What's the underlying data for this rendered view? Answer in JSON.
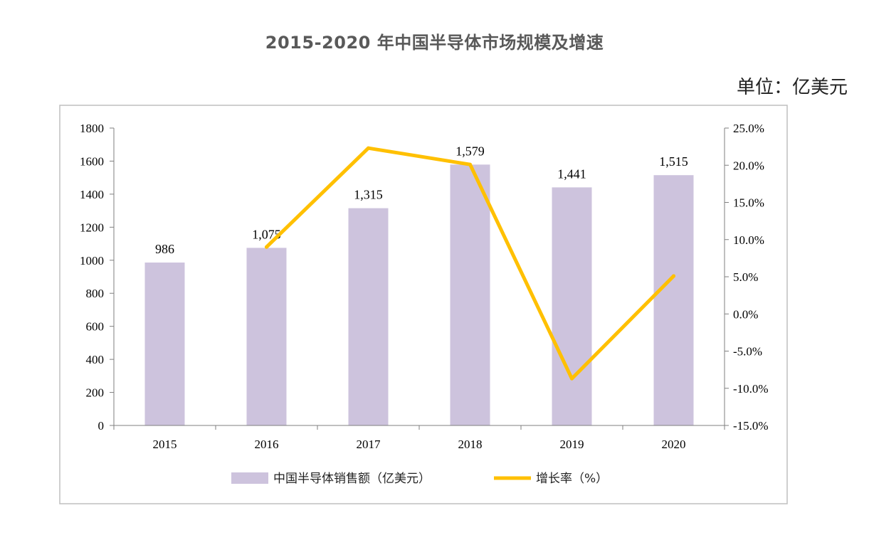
{
  "chart_data": {
    "type": "bar",
    "title": "2015-2020 年中国半导体市场规模及增速",
    "unit_label": "单位：亿美元",
    "categories": [
      "2015",
      "2016",
      "2017",
      "2018",
      "2019",
      "2020"
    ],
    "series": [
      {
        "name": "中国半导体销售额（亿美元）",
        "type": "bar",
        "axis": "left",
        "values": [
          986,
          1075,
          1315,
          1579,
          1441,
          1515
        ],
        "value_labels": [
          "986",
          "1,075",
          "1,315",
          "1,579",
          "1,441",
          "1,515"
        ],
        "color": "#cdc3dd"
      },
      {
        "name": "增长率（%）",
        "type": "line",
        "axis": "right",
        "values": [
          null,
          9.0,
          22.3,
          20.1,
          -8.7,
          5.1
        ],
        "color": "#ffc000"
      }
    ],
    "y_left": {
      "min": 0,
      "max": 1800,
      "step": 200,
      "tick_labels": [
        "0",
        "200",
        "400",
        "600",
        "800",
        "1000",
        "1200",
        "1400",
        "1600",
        "1800"
      ]
    },
    "y_right": {
      "min": -15,
      "max": 25,
      "step": 5,
      "tick_labels": [
        "-15.0%",
        "-10.0%",
        "-5.0%",
        "0.0%",
        "5.0%",
        "10.0%",
        "15.0%",
        "20.0%",
        "25.0%"
      ]
    },
    "legend_position": "bottom"
  }
}
